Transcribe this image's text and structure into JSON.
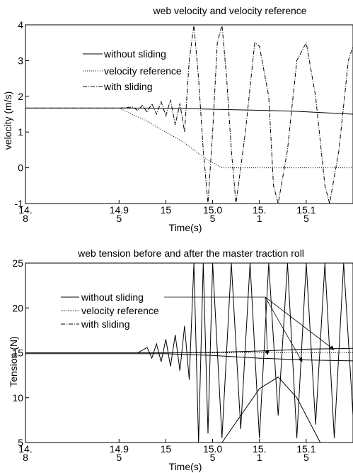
{
  "chart_data": [
    {
      "type": "line",
      "title": "web velocity and velocity  reference",
      "xlabel": "Time(s)",
      "ylabel": "velocity (m/s)",
      "xlim": [
        14.85,
        15.2
      ],
      "ylim": [
        -1,
        4
      ],
      "x_tick_values": [
        14.85,
        14.95,
        15.0,
        15.05,
        15.1,
        15.15
      ],
      "x_tick_labels": [
        "14.",
        "14.9",
        "15",
        "15.0",
        "15.",
        "15.1"
      ],
      "x_tick_sublabels": [
        "8",
        "5",
        "",
        "5",
        "1",
        "5"
      ],
      "y_tick_values": [
        -1,
        0,
        1,
        2,
        3,
        4
      ],
      "y_tick_labels": [
        "-1",
        "0",
        "1",
        "2",
        "3",
        "4"
      ],
      "grid": false,
      "legend_placement": "top-left",
      "legend": [
        "without sliding",
        "velocity reference",
        "with sliding"
      ],
      "series": [
        {
          "name": "without sliding",
          "style": "solid",
          "points": [
            [
              14.85,
              1.67
            ],
            [
              14.95,
              1.67
            ],
            [
              14.98,
              1.67
            ],
            [
              15.0,
              1.66
            ],
            [
              15.03,
              1.65
            ],
            [
              15.06,
              1.63
            ],
            [
              15.1,
              1.61
            ],
            [
              15.14,
              1.58
            ],
            [
              15.17,
              1.54
            ],
            [
              15.2,
              1.5
            ]
          ]
        },
        {
          "name": "velocity reference",
          "style": "dotted",
          "points": [
            [
              14.85,
              1.67
            ],
            [
              14.95,
              1.67
            ],
            [
              14.96,
              1.55
            ],
            [
              14.98,
              1.3
            ],
            [
              15.0,
              1.0
            ],
            [
              15.02,
              0.7
            ],
            [
              15.04,
              0.3
            ],
            [
              15.06,
              0.0
            ],
            [
              15.1,
              0.0
            ],
            [
              15.2,
              0.0
            ]
          ]
        },
        {
          "name": "with sliding",
          "style": "dash-dot",
          "points": [
            [
              14.85,
              1.67
            ],
            [
              14.95,
              1.67
            ],
            [
              14.965,
              1.7
            ],
            [
              14.97,
              1.6
            ],
            [
              14.975,
              1.75
            ],
            [
              14.98,
              1.55
            ],
            [
              14.985,
              1.8
            ],
            [
              14.99,
              1.5
            ],
            [
              14.995,
              1.85
            ],
            [
              15.0,
              1.45
            ],
            [
              15.005,
              1.9
            ],
            [
              15.01,
              1.2
            ],
            [
              15.015,
              1.8
            ],
            [
              15.02,
              1.0
            ],
            [
              15.025,
              3.0
            ],
            [
              15.03,
              4.0
            ],
            [
              15.035,
              2.5
            ],
            [
              15.04,
              0.5
            ],
            [
              15.045,
              -1.0
            ],
            [
              15.05,
              1.0
            ],
            [
              15.055,
              3.5
            ],
            [
              15.06,
              4.0
            ],
            [
              15.065,
              2.5
            ],
            [
              15.07,
              0.5
            ],
            [
              15.075,
              -1.0
            ],
            [
              15.085,
              1.0
            ],
            [
              15.095,
              3.5
            ],
            [
              15.1,
              3.4
            ],
            [
              15.11,
              2.0
            ],
            [
              15.115,
              -0.5
            ],
            [
              15.12,
              -1.0
            ],
            [
              15.13,
              0.5
            ],
            [
              15.14,
              3.0
            ],
            [
              15.15,
              3.5
            ],
            [
              15.16,
              2.0
            ],
            [
              15.17,
              -0.5
            ],
            [
              15.175,
              -1.0
            ],
            [
              15.185,
              0.5
            ],
            [
              15.195,
              3.0
            ],
            [
              15.2,
              3.4
            ]
          ]
        }
      ]
    },
    {
      "type": "line",
      "title": "web tension before and after the master traction roll",
      "xlabel": "Time(s)",
      "ylabel": "Tension (N)",
      "xlim": [
        14.85,
        15.2
      ],
      "ylim": [
        5,
        25
      ],
      "x_tick_values": [
        14.85,
        14.95,
        15.0,
        15.05,
        15.1,
        15.15
      ],
      "x_tick_labels": [
        "14.",
        "14.9",
        "15",
        "15.0",
        "15.",
        "15.1"
      ],
      "x_tick_sublabels": [
        "8",
        "5",
        "",
        "5",
        "1",
        "5"
      ],
      "y_tick_values": [
        5,
        10,
        15,
        20,
        25
      ],
      "y_tick_labels": [
        "5",
        "10",
        "15",
        "20",
        "25"
      ],
      "grid": false,
      "legend_placement": "top-left",
      "legend": [
        "without sliding",
        "velocity reference",
        "with sliding"
      ],
      "series": [
        {
          "name": "without sliding (upper)",
          "style": "solid",
          "points": [
            [
              14.85,
              15.0
            ],
            [
              15.0,
              15.0
            ],
            [
              15.05,
              15.05
            ],
            [
              15.1,
              15.2
            ],
            [
              15.15,
              15.4
            ],
            [
              15.2,
              15.5
            ]
          ]
        },
        {
          "name": "without sliding (lower)",
          "style": "solid",
          "points": [
            [
              14.85,
              14.9
            ],
            [
              15.0,
              14.9
            ],
            [
              15.05,
              14.7
            ],
            [
              15.1,
              14.4
            ],
            [
              15.15,
              14.2
            ],
            [
              15.2,
              14.1
            ]
          ]
        },
        {
          "name": "velocity reference",
          "style": "dotted",
          "points": [
            [
              14.85,
              15.0
            ],
            [
              15.2,
              15.0
            ]
          ]
        },
        {
          "name": "with sliding",
          "style": "solid-oscillating",
          "points": [
            [
              14.85,
              15.0
            ],
            [
              14.97,
              15.0
            ],
            [
              14.98,
              15.6
            ],
            [
              14.985,
              14.4
            ],
            [
              14.99,
              16.0
            ],
            [
              14.995,
              14.0
            ],
            [
              15.0,
              16.5
            ],
            [
              15.005,
              13.5
            ],
            [
              15.01,
              17.0
            ],
            [
              15.015,
              13.0
            ],
            [
              15.02,
              18.0
            ],
            [
              15.025,
              12.0
            ],
            [
              15.03,
              25.0
            ],
            [
              15.035,
              5.0
            ],
            [
              15.04,
              25.0
            ],
            [
              15.045,
              6.0
            ],
            [
              15.05,
              25.0
            ],
            [
              15.06,
              5.5
            ],
            [
              15.07,
              25.0
            ],
            [
              15.08,
              6.5
            ],
            [
              15.09,
              25.0
            ],
            [
              15.1,
              5.5
            ],
            [
              15.11,
              25.0
            ],
            [
              15.12,
              8.0
            ],
            [
              15.13,
              25.0
            ],
            [
              15.14,
              5.5
            ],
            [
              15.15,
              25.0
            ],
            [
              15.16,
              7.0
            ],
            [
              15.17,
              25.0
            ],
            [
              15.18,
              5.5
            ],
            [
              15.19,
              25.0
            ],
            [
              15.2,
              8.0
            ]
          ]
        },
        {
          "name": "with sliding (arches)",
          "style": "solid",
          "points": [
            [
              15.06,
              5.0
            ],
            [
              15.08,
              8.0
            ],
            [
              15.1,
              11.0
            ],
            [
              15.12,
              12.3
            ],
            [
              15.14,
              10.0
            ],
            [
              15.16,
              6.0
            ],
            [
              15.165,
              5.0
            ]
          ]
        }
      ],
      "annotations": [
        "arrows from legend to the without-sliding curves near t=15.1–15.17"
      ]
    }
  ]
}
